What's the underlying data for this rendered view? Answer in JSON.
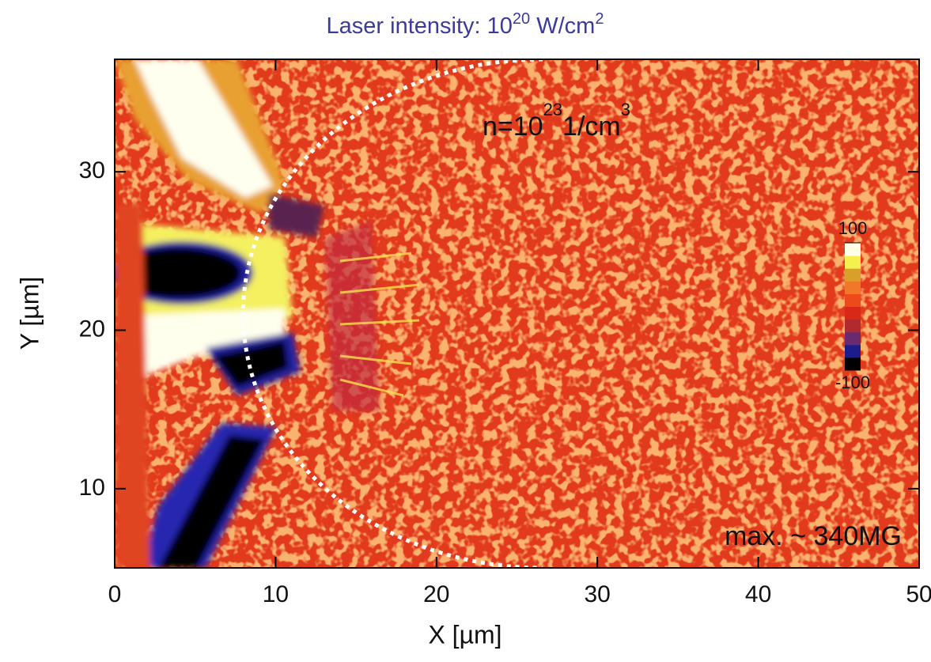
{
  "chart_data": {
    "type": "heatmap",
    "title": [
      "Laser intensity: 10",
      "20",
      " W/cm",
      "2"
    ],
    "xlabel": "X [µm]",
    "ylabel": "Y [µm]",
    "xlim": [
      0,
      50
    ],
    "xticks": [
      0,
      10,
      20,
      30,
      40,
      50
    ],
    "ylim": [
      5,
      37.1
    ],
    "yticks": [
      10,
      20,
      30
    ],
    "annotations": {
      "density": [
        "n=10",
        "23",
        "1/cm",
        "3"
      ],
      "max": "max. ~ 340MG"
    },
    "colorbar": {
      "lim": [
        -100,
        100
      ],
      "ticks": [
        100,
        -100
      ],
      "colors": [
        "#000000",
        "#1c1c8c",
        "#6a2a70",
        "#b02a30",
        "#d82818",
        "#ec4a1a",
        "#f07828",
        "#d8a028",
        "#f4f050",
        "#ffffe8"
      ]
    }
  }
}
